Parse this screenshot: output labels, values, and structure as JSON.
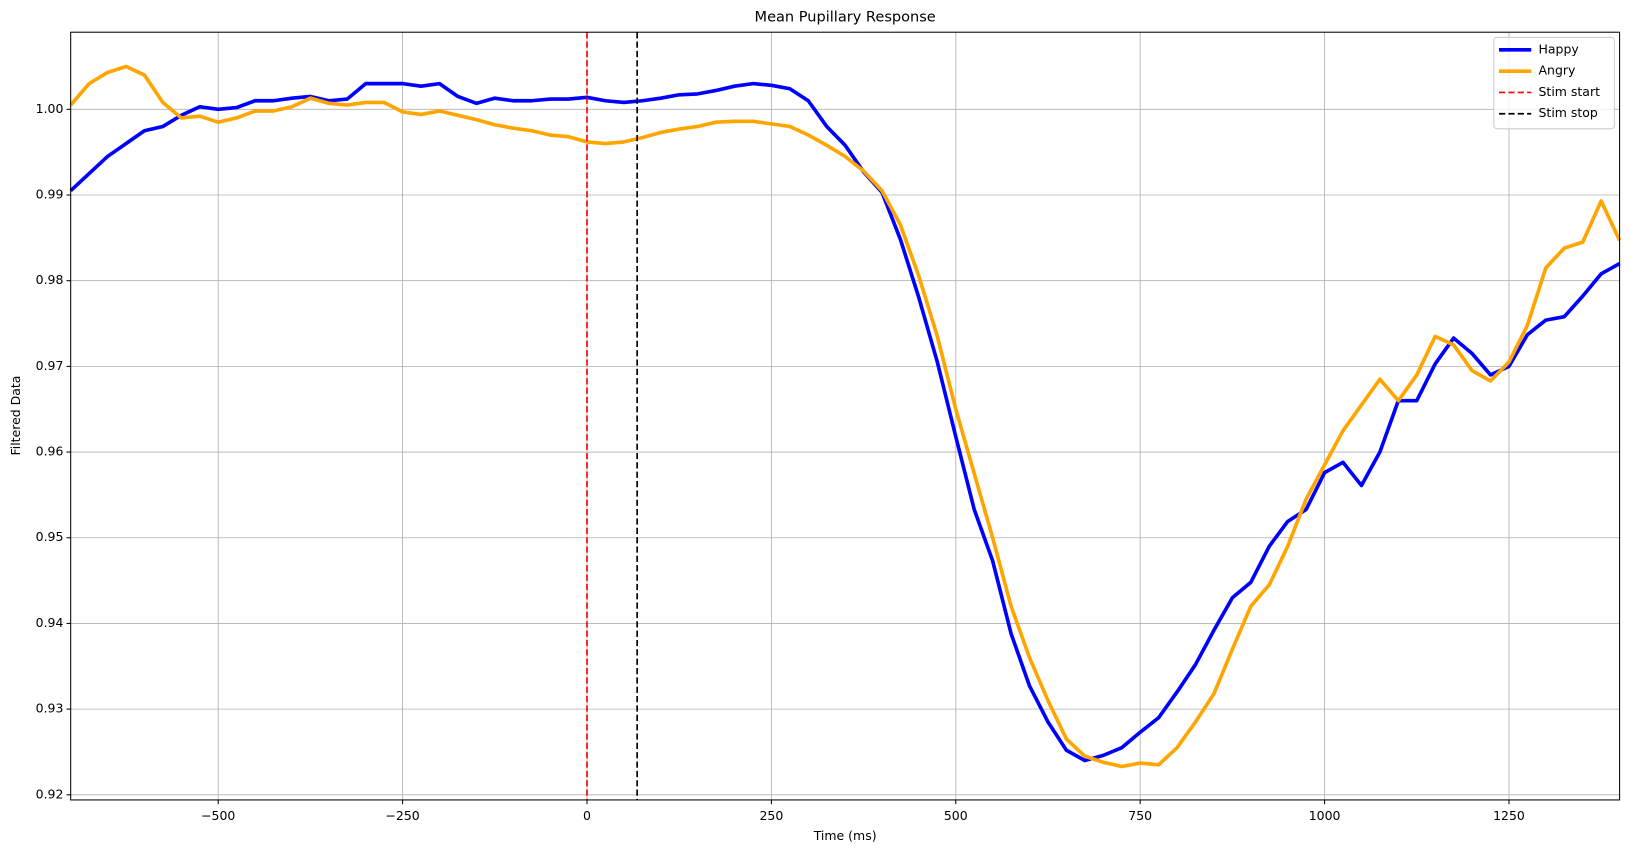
{
  "chart_data": {
    "type": "line",
    "title": "Mean Pupillary Response",
    "xlabel": "Time (ms)",
    "ylabel": "Filtered Data",
    "x": [
      -700,
      -675,
      -650,
      -625,
      -600,
      -575,
      -550,
      -525,
      -500,
      -475,
      -450,
      -425,
      -400,
      -375,
      -350,
      -325,
      -300,
      -275,
      -250,
      -225,
      -200,
      -175,
      -150,
      -125,
      -100,
      -75,
      -50,
      -25,
      0,
      25,
      50,
      75,
      100,
      125,
      150,
      175,
      200,
      225,
      250,
      275,
      300,
      325,
      350,
      375,
      400,
      425,
      450,
      475,
      500,
      525,
      550,
      575,
      600,
      625,
      650,
      675,
      700,
      725,
      750,
      775,
      800,
      825,
      850,
      875,
      900,
      925,
      950,
      975,
      1000,
      1025,
      1050,
      1075,
      1100,
      1125,
      1150,
      1175,
      1200,
      1225,
      1250,
      1275,
      1300,
      1325,
      1350,
      1375,
      1400
    ],
    "series": [
      {
        "name": "Happy",
        "color": "#0000ff",
        "values": [
          0.9905,
          0.9925,
          0.9945,
          0.996,
          0.9975,
          0.998,
          0.9993,
          1.0003,
          1.0,
          1.0002,
          1.001,
          1.001,
          1.0013,
          1.0015,
          1.001,
          1.0012,
          1.003,
          1.003,
          1.003,
          1.0027,
          1.003,
          1.0015,
          1.0007,
          1.0013,
          1.001,
          1.001,
          1.0012,
          1.0012,
          1.0014,
          1.001,
          1.0008,
          1.001,
          1.0013,
          1.0017,
          1.0018,
          1.0022,
          1.0027,
          1.003,
          1.0028,
          1.0024,
          1.001,
          0.998,
          0.9958,
          0.9927,
          0.9903,
          0.9848,
          0.978,
          0.9705,
          0.9618,
          0.9533,
          0.9473,
          0.9388,
          0.9327,
          0.9285,
          0.9252,
          0.924,
          0.9246,
          0.9255,
          0.9273,
          0.929,
          0.932,
          0.9352,
          0.9392,
          0.943,
          0.9448,
          0.949,
          0.9519,
          0.9533,
          0.9576,
          0.9588,
          0.9561,
          0.96,
          0.966,
          0.966,
          0.9703,
          0.9733,
          0.9715,
          0.969,
          0.97,
          0.9737,
          0.9754,
          0.9758,
          0.9782,
          0.9808,
          0.982
        ]
      },
      {
        "name": "Angry",
        "color": "#ffa500",
        "values": [
          1.0005,
          1.003,
          1.0043,
          1.005,
          1.004,
          1.0008,
          0.999,
          0.9992,
          0.9985,
          0.999,
          0.9998,
          0.9998,
          1.0003,
          1.0013,
          1.0007,
          1.0005,
          1.0008,
          1.0008,
          0.9997,
          0.9994,
          0.9998,
          0.9993,
          0.9988,
          0.9982,
          0.9978,
          0.9975,
          0.997,
          0.9968,
          0.9962,
          0.996,
          0.9962,
          0.9967,
          0.9973,
          0.9977,
          0.998,
          0.9985,
          0.9986,
          0.9986,
          0.9983,
          0.998,
          0.997,
          0.9958,
          0.9945,
          0.9928,
          0.9905,
          0.9865,
          0.9805,
          0.9735,
          0.965,
          0.9575,
          0.95,
          0.942,
          0.936,
          0.931,
          0.9265,
          0.9245,
          0.9238,
          0.9233,
          0.9237,
          0.9235,
          0.9255,
          0.9285,
          0.9318,
          0.937,
          0.942,
          0.9445,
          0.949,
          0.9545,
          0.9585,
          0.9625,
          0.9655,
          0.9685,
          0.966,
          0.969,
          0.9735,
          0.9725,
          0.9695,
          0.9683,
          0.9705,
          0.9748,
          0.9815,
          0.9838,
          0.9845,
          0.9893,
          0.9847
        ]
      }
    ],
    "vlines": [
      {
        "name": "Stim start",
        "x": 0,
        "color": "#ff0000"
      },
      {
        "name": "Stim stop",
        "x": 68,
        "color": "#000000"
      }
    ],
    "xlim": [
      -700,
      1400
    ],
    "ylim": [
      0.9194,
      1.009
    ],
    "xticks": [
      {
        "value": -500,
        "label": "−500"
      },
      {
        "value": -250,
        "label": "−250"
      },
      0,
      250,
      500,
      750,
      1000,
      1250
    ],
    "yticks": [
      0.92,
      0.93,
      0.94,
      0.95,
      0.96,
      0.97,
      0.98,
      0.99,
      {
        "value": 1,
        "label": "1.00"
      }
    ],
    "grid": true,
    "legend": "upper right"
  }
}
